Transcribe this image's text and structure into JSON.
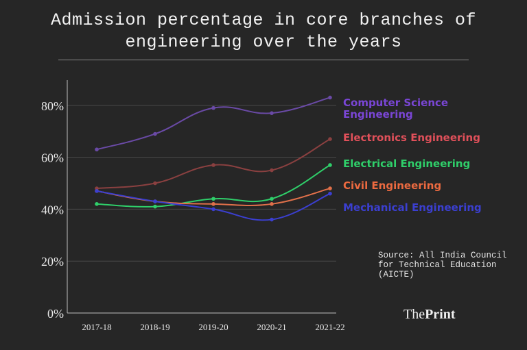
{
  "header": {
    "title_line1": "Admission percentage in core branches of",
    "title_line2": "engineering over the years"
  },
  "source": "Source: All India Council\nfor Technical Education\n(AICTE)",
  "brand": {
    "part1": "The",
    "part2": "Print"
  },
  "chart_data": {
    "type": "line",
    "title": "Admission percentage in core branches of engineering over the years",
    "xlabel": "",
    "ylabel": "",
    "categories": [
      "2017-18",
      "2018-19",
      "2019-20",
      "2020-21",
      "2021-22"
    ],
    "yticks": [
      "0%",
      "20%",
      "40%",
      "60%",
      "80%"
    ],
    "ytick_values": [
      0,
      20,
      40,
      60,
      80
    ],
    "ylim": [
      0,
      90
    ],
    "grid": true,
    "legend_position": "right",
    "series": [
      {
        "name": "Computer Science Engineering",
        "label_lines": [
          "Computer Science",
          "Engineering"
        ],
        "color": "#7a46d6",
        "line_color": "#6a4aa6",
        "values": [
          63,
          69,
          79,
          77,
          83
        ]
      },
      {
        "name": "Electronics Engineering",
        "label_lines": [
          "Electronics Engineering"
        ],
        "color": "#e0505a",
        "line_color": "#8a4040",
        "values": [
          48,
          50,
          57,
          55,
          67
        ]
      },
      {
        "name": "Electrical Engineering",
        "label_lines": [
          "Electrical Engineering"
        ],
        "color": "#2fcf6a",
        "line_color": "#2fcf6a",
        "values": [
          42,
          41,
          44,
          44,
          57
        ]
      },
      {
        "name": "Civil Engineering",
        "label_lines": [
          "Civil Engineering"
        ],
        "color": "#ec6a40",
        "line_color": "#e0704a",
        "values": [
          47,
          43,
          42,
          42,
          48
        ]
      },
      {
        "name": "Mechanical Engineering",
        "label_lines": [
          "Mechanical Engineering"
        ],
        "color": "#3b3fd0",
        "line_color": "#3b3fd0",
        "values": [
          47,
          43,
          40,
          36,
          46
        ]
      }
    ]
  }
}
